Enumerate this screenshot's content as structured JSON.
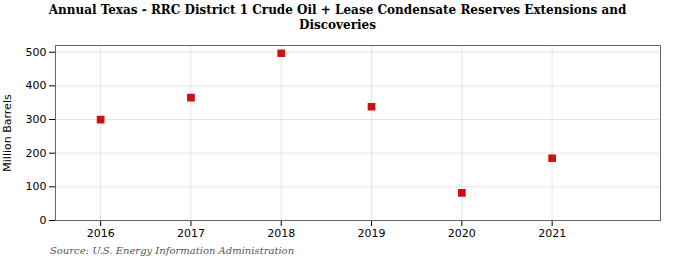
{
  "chart_data": {
    "type": "scatter",
    "title": "Annual Texas - RRC District 1 Crude Oil + Lease Condensate Reserves Extensions and\nDiscoveries",
    "ylabel": "Million Barrels",
    "source": "Source: U.S. Energy Information Administration",
    "x": [
      2016,
      2017,
      2018,
      2019,
      2020,
      2021
    ],
    "values": [
      300,
      365,
      497,
      338,
      82,
      185
    ],
    "xlim": [
      2015.5,
      2022.2
    ],
    "xticks": [
      2016,
      2017,
      2018,
      2019,
      2020,
      2021
    ],
    "ylim": [
      0,
      520
    ],
    "yticks": [
      0,
      100,
      200,
      300,
      400,
      500
    ],
    "color": "#cc1111",
    "marker": "square",
    "grid": true
  }
}
